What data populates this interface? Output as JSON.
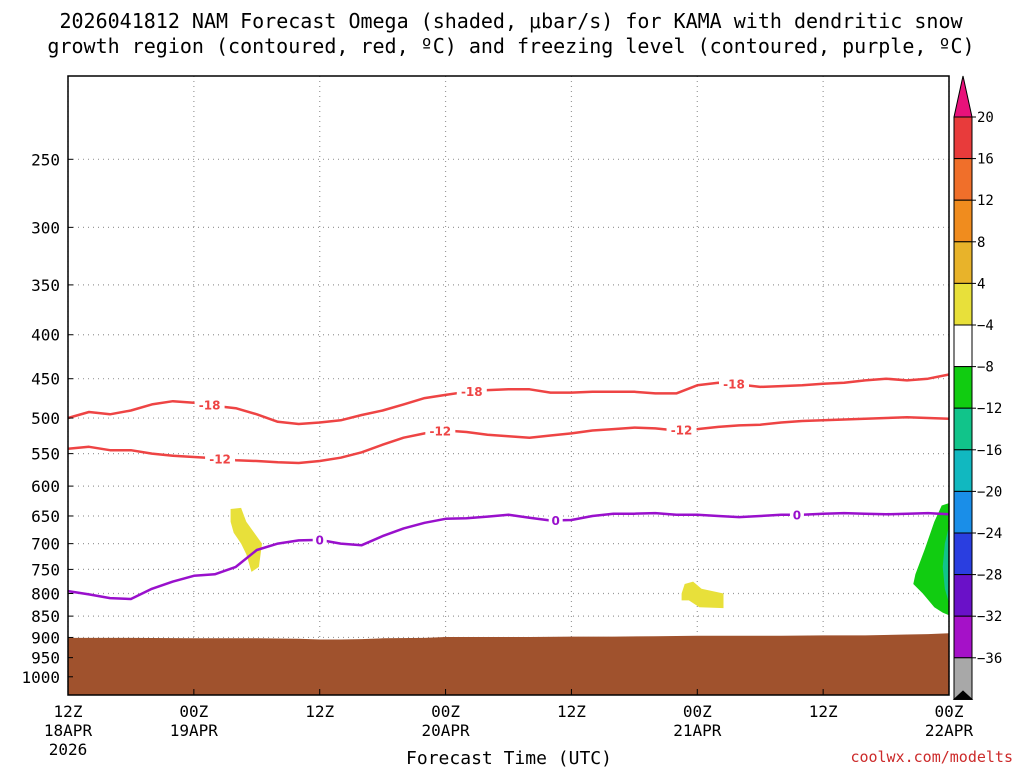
{
  "chart_data": {
    "type": "time-height",
    "title_line1": "2026041812 NAM Forecast Omega (shaded, μbar/s) for KAMA with dendritic snow",
    "title_line2": "growth region (contoured, red, ºC) and freezing level (contoured, purple, ºC)",
    "xlabel": "Forecast Time (UTC)",
    "credit": "coolwx.com/modelts",
    "xlim": [
      0,
      84
    ],
    "ylim": [
      1050,
      200
    ],
    "x_ticks": [
      {
        "x": 0,
        "l1": "12Z",
        "l2": "18APR",
        "l3": "2026"
      },
      {
        "x": 12,
        "l1": "00Z",
        "l2": "19APR",
        "l3": ""
      },
      {
        "x": 24,
        "l1": "12Z",
        "l2": "",
        "l3": ""
      },
      {
        "x": 36,
        "l1": "00Z",
        "l2": "20APR",
        "l3": ""
      },
      {
        "x": 48,
        "l1": "12Z",
        "l2": "",
        "l3": ""
      },
      {
        "x": 60,
        "l1": "00Z",
        "l2": "21APR",
        "l3": ""
      },
      {
        "x": 72,
        "l1": "12Z",
        "l2": "",
        "l3": ""
      },
      {
        "x": 84,
        "l1": "00Z",
        "l2": "22APR",
        "l3": ""
      }
    ],
    "y_ticks": [
      {
        "p": 250,
        "label": "250"
      },
      {
        "p": 300,
        "label": "300"
      },
      {
        "p": 350,
        "label": "350"
      },
      {
        "p": 400,
        "label": "400"
      },
      {
        "p": 450,
        "label": "450"
      },
      {
        "p": 500,
        "label": "500"
      },
      {
        "p": 550,
        "label": "550"
      },
      {
        "p": 600,
        "label": "600"
      },
      {
        "p": 650,
        "label": "650"
      },
      {
        "p": 700,
        "label": "700"
      },
      {
        "p": 750,
        "label": "750"
      },
      {
        "p": 800,
        "label": "800"
      },
      {
        "p": 850,
        "label": "850"
      },
      {
        "p": 900,
        "label": "900"
      },
      {
        "p": 950,
        "label": "950"
      },
      {
        "p": 1000,
        "label": "1000"
      }
    ],
    "colorbar": {
      "labels": [
        "20",
        "16",
        "12",
        "8",
        "4",
        "−4",
        "−8",
        "−12",
        "−16",
        "−20",
        "−24",
        "−28",
        "−32",
        "−36"
      ],
      "colors": [
        "#e83b3b",
        "#f06f2a",
        "#f08c1e",
        "#e8b32a",
        "#e8e03a",
        "#ffffff",
        "#11cc11",
        "#11c48a",
        "#11b8c0",
        "#1a8ee8",
        "#2a3ee0",
        "#6a11c8",
        "#a511c8",
        "#a8a8a8"
      ],
      "over_color": "#e8117a",
      "under_color": "#000000"
    },
    "series": [
      {
        "name": "-18 C isotherm",
        "color": "#ee4444",
        "label": "-18",
        "label_x": [
          13.5,
          38.5,
          63.5
        ],
        "points": [
          [
            0,
            500
          ],
          [
            2,
            492
          ],
          [
            4,
            495
          ],
          [
            6,
            490
          ],
          [
            8,
            482
          ],
          [
            10,
            478
          ],
          [
            12,
            480
          ],
          [
            14,
            484
          ],
          [
            16,
            487
          ],
          [
            18,
            495
          ],
          [
            20,
            505
          ],
          [
            22,
            508
          ],
          [
            24,
            506
          ],
          [
            26,
            503
          ],
          [
            28,
            496
          ],
          [
            30,
            490
          ],
          [
            32,
            482
          ],
          [
            34,
            474
          ],
          [
            36,
            470
          ],
          [
            38,
            466
          ],
          [
            40,
            464
          ],
          [
            42,
            463
          ],
          [
            44,
            463
          ],
          [
            46,
            467
          ],
          [
            48,
            467
          ],
          [
            50,
            466
          ],
          [
            52,
            466
          ],
          [
            54,
            466
          ],
          [
            56,
            468
          ],
          [
            58,
            468
          ],
          [
            60,
            458
          ],
          [
            62,
            455
          ],
          [
            64,
            457
          ],
          [
            66,
            460
          ],
          [
            68,
            459
          ],
          [
            70,
            458
          ],
          [
            72,
            456
          ],
          [
            74,
            455
          ],
          [
            76,
            452
          ],
          [
            78,
            450
          ],
          [
            80,
            452
          ],
          [
            82,
            450
          ],
          [
            84,
            445
          ]
        ]
      },
      {
        "name": "-12 C isotherm",
        "color": "#ee4444",
        "label": "-12",
        "label_x": [
          14.5,
          35.5,
          58.5
        ],
        "points": [
          [
            0,
            543
          ],
          [
            2,
            540
          ],
          [
            4,
            545
          ],
          [
            6,
            545
          ],
          [
            8,
            550
          ],
          [
            10,
            553
          ],
          [
            12,
            555
          ],
          [
            14,
            557
          ],
          [
            16,
            560
          ],
          [
            18,
            561
          ],
          [
            20,
            563
          ],
          [
            22,
            564
          ],
          [
            24,
            561
          ],
          [
            26,
            556
          ],
          [
            28,
            548
          ],
          [
            30,
            537
          ],
          [
            32,
            527
          ],
          [
            34,
            521
          ],
          [
            36,
            517
          ],
          [
            38,
            519
          ],
          [
            40,
            523
          ],
          [
            42,
            525
          ],
          [
            44,
            527
          ],
          [
            46,
            524
          ],
          [
            48,
            521
          ],
          [
            50,
            517
          ],
          [
            52,
            515
          ],
          [
            54,
            513
          ],
          [
            56,
            514
          ],
          [
            58,
            517
          ],
          [
            60,
            515
          ],
          [
            62,
            512
          ],
          [
            64,
            510
          ],
          [
            66,
            509
          ],
          [
            68,
            506
          ],
          [
            70,
            504
          ],
          [
            72,
            503
          ],
          [
            74,
            502
          ],
          [
            76,
            501
          ],
          [
            78,
            500
          ],
          [
            80,
            499
          ],
          [
            82,
            500
          ],
          [
            84,
            501
          ]
        ]
      },
      {
        "name": "0 C freezing level",
        "color": "#9910cc",
        "label": "0",
        "label_x": [
          24,
          46.5,
          69.5
        ],
        "points": [
          [
            0,
            795
          ],
          [
            2,
            802
          ],
          [
            4,
            810
          ],
          [
            6,
            812
          ],
          [
            8,
            790
          ],
          [
            10,
            775
          ],
          [
            12,
            763
          ],
          [
            14,
            760
          ],
          [
            16,
            745
          ],
          [
            18,
            712
          ],
          [
            20,
            700
          ],
          [
            22,
            694
          ],
          [
            24,
            693
          ],
          [
            26,
            700
          ],
          [
            28,
            703
          ],
          [
            30,
            686
          ],
          [
            32,
            672
          ],
          [
            34,
            662
          ],
          [
            36,
            655
          ],
          [
            38,
            654
          ],
          [
            40,
            651
          ],
          [
            42,
            648
          ],
          [
            44,
            653
          ],
          [
            46,
            658
          ],
          [
            48,
            657
          ],
          [
            50,
            650
          ],
          [
            52,
            646
          ],
          [
            54,
            646
          ],
          [
            56,
            645
          ],
          [
            58,
            648
          ],
          [
            60,
            648
          ],
          [
            62,
            650
          ],
          [
            64,
            652
          ],
          [
            66,
            650
          ],
          [
            68,
            648
          ],
          [
            70,
            648
          ],
          [
            72,
            646
          ],
          [
            74,
            645
          ],
          [
            76,
            646
          ],
          [
            78,
            647
          ],
          [
            80,
            646
          ],
          [
            82,
            645
          ],
          [
            84,
            647
          ]
        ]
      }
    ],
    "shaded_regions": [
      {
        "name": "omega 4 to 8 (late 18APR)",
        "color": "#e8e03a",
        "points": [
          [
            15.5,
            638
          ],
          [
            16.5,
            636
          ],
          [
            17,
            660
          ],
          [
            18.5,
            700
          ],
          [
            18.2,
            745
          ],
          [
            17.5,
            755
          ],
          [
            17,
            720
          ],
          [
            16.5,
            700
          ],
          [
            15.8,
            680
          ],
          [
            15.5,
            660
          ]
        ]
      },
      {
        "name": "omega 4 to 8 (20-21APR)",
        "color": "#e8e03a",
        "points": [
          [
            58.5,
            800
          ],
          [
            58.8,
            780
          ],
          [
            59.6,
            775
          ],
          [
            60.4,
            790
          ],
          [
            62.5,
            800
          ],
          [
            62.5,
            832
          ],
          [
            60.2,
            830
          ],
          [
            59.2,
            815
          ],
          [
            58.5,
            815
          ]
        ]
      },
      {
        "name": "omega -4 to -8 (22APR)",
        "color": "#11cc11",
        "points": [
          [
            84,
            628
          ],
          [
            83.3,
            632
          ],
          [
            82.6,
            660
          ],
          [
            81.7,
            710
          ],
          [
            80.8,
            760
          ],
          [
            80.6,
            780
          ],
          [
            81.5,
            800
          ],
          [
            82.6,
            830
          ],
          [
            83.4,
            842
          ],
          [
            84,
            848
          ]
        ]
      },
      {
        "name": "omega -8 to -12 (22APR)",
        "color": "#11c48a",
        "points": [
          [
            84,
            668
          ],
          [
            83.6,
            700
          ],
          [
            83.4,
            745
          ],
          [
            83.6,
            790
          ],
          [
            84,
            820
          ]
        ]
      }
    ],
    "terrain": {
      "name": "terrain",
      "color": "#a0522d",
      "points": [
        [
          0,
          901
        ],
        [
          6,
          901
        ],
        [
          12,
          902
        ],
        [
          18,
          902
        ],
        [
          22,
          903
        ],
        [
          24,
          905
        ],
        [
          26,
          905
        ],
        [
          28,
          904
        ],
        [
          30,
          902
        ],
        [
          34,
          901
        ],
        [
          36,
          899
        ],
        [
          40,
          899
        ],
        [
          44,
          899
        ],
        [
          48,
          898
        ],
        [
          52,
          898
        ],
        [
          56,
          897
        ],
        [
          60,
          896
        ],
        [
          64,
          896
        ],
        [
          68,
          896
        ],
        [
          72,
          895
        ],
        [
          76,
          895
        ],
        [
          80,
          893
        ],
        [
          82,
          892
        ],
        [
          84,
          890
        ]
      ]
    }
  }
}
